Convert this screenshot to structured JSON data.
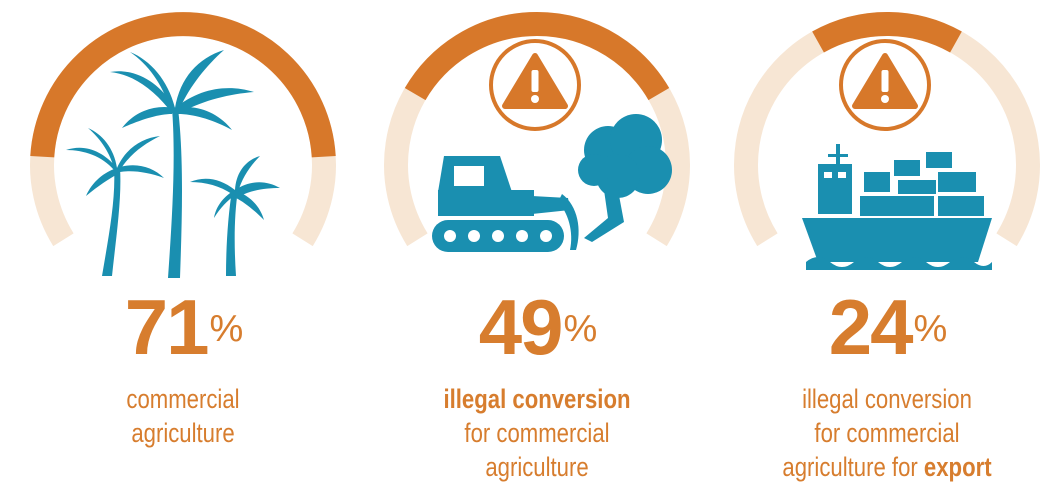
{
  "chart_data": {
    "type": "donut",
    "colors": {
      "arc": "#d7782a",
      "track": "#f7e6d4",
      "icon": "#1a8fb0",
      "text": "#d77d2e"
    },
    "items": [
      {
        "value": 71,
        "value_text": "71",
        "unit": "%",
        "icon": "palm-trees-icon",
        "warning": false,
        "caption_lines": [
          [
            {
              "text": "commercial",
              "bold": false
            }
          ],
          [
            {
              "text": "agriculture",
              "bold": false
            }
          ]
        ]
      },
      {
        "value": 49,
        "value_text": "49",
        "unit": "%",
        "icon": "bulldozer-tree-icon",
        "warning": true,
        "caption_lines": [
          [
            {
              "text": "illegal conversion",
              "bold": true
            }
          ],
          [
            {
              "text": "for commercial",
              "bold": false
            }
          ],
          [
            {
              "text": "agriculture",
              "bold": false
            }
          ]
        ]
      },
      {
        "value": 24,
        "value_text": "24",
        "unit": "%",
        "icon": "cargo-ship-icon",
        "warning": true,
        "caption_lines": [
          [
            {
              "text": "illegal conversion",
              "bold": false
            }
          ],
          [
            {
              "text": "for commercial",
              "bold": false
            }
          ],
          [
            {
              "text": "agriculture for ",
              "bold": false
            },
            {
              "text": "export",
              "bold": true
            }
          ]
        ]
      }
    ]
  }
}
